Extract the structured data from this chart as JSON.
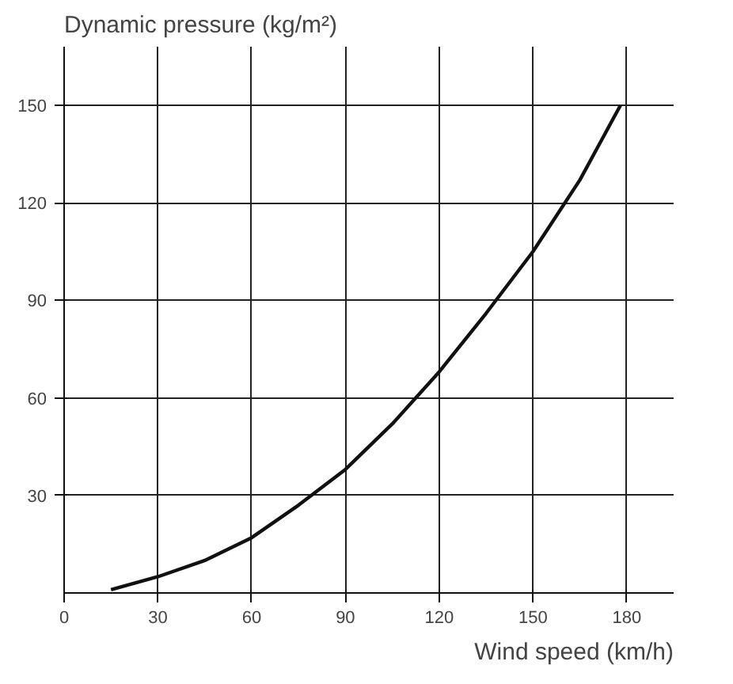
{
  "chart_data": {
    "type": "line",
    "xlabel": "Wind speed (km/h)",
    "ylabel": "Dynamic pressure (kg/m²)",
    "x": [
      15,
      30,
      45,
      60,
      75,
      90,
      105,
      120,
      135,
      150,
      165,
      178
    ],
    "series": [
      {
        "color": "#111111",
        "values": [
          1,
          5,
          10,
          17,
          27,
          38,
          52,
          68,
          86,
          105,
          127,
          150
        ]
      }
    ],
    "xlim": [
      0,
      195
    ],
    "ylim": [
      0,
      168
    ],
    "xticks": [
      0,
      30,
      60,
      90,
      120,
      150,
      180
    ],
    "yticks": [
      30,
      60,
      90,
      120,
      150
    ],
    "grid": true,
    "marker": "none",
    "line_style": "solid"
  }
}
